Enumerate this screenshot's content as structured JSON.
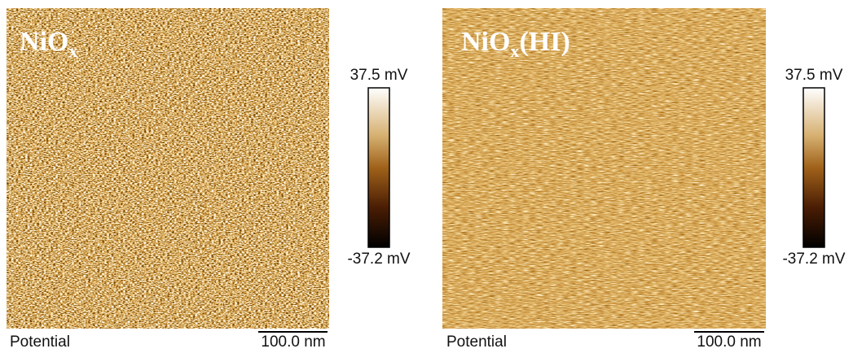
{
  "panels": [
    {
      "label": "NiO",
      "label_subscript": "x",
      "colorbar_max": "37.5 mV",
      "colorbar_min": "-37.2 mV",
      "channel": "Potential",
      "scale_bar": "100.0 nm"
    },
    {
      "label": "NiO",
      "label_subscript": "x",
      "label_suffix": "(HI)",
      "colorbar_max": "37.5 mV",
      "colorbar_min": "-37.2 mV",
      "channel": "Potential",
      "scale_bar": "100.0 nm"
    }
  ]
}
